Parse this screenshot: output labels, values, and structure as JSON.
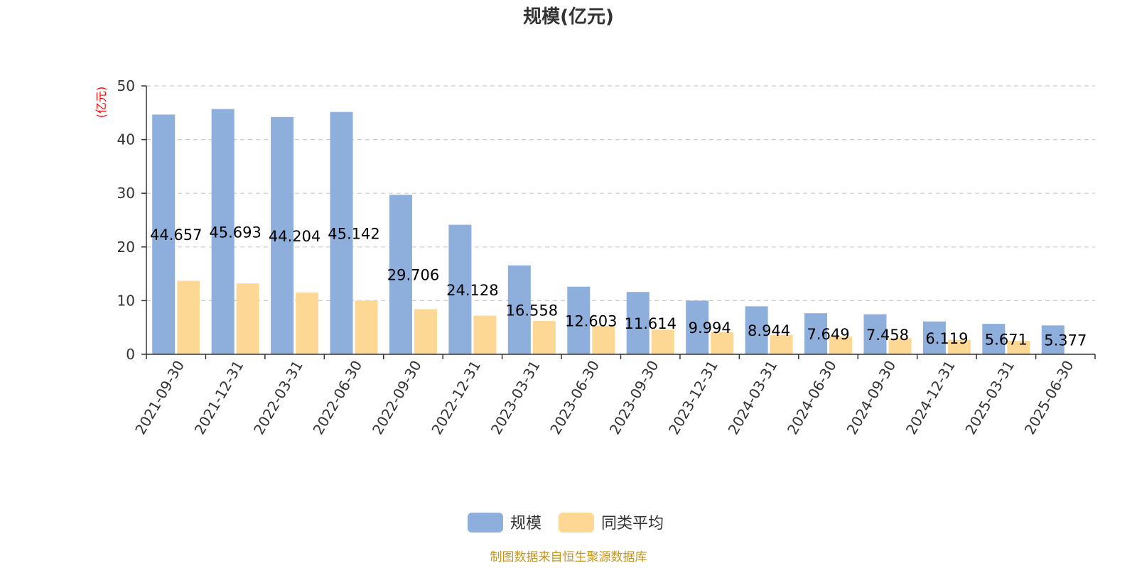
{
  "chart_data": {
    "type": "bar",
    "title": "规模(亿元)",
    "y_unit_label": "(亿元)",
    "ylim": [
      0,
      50
    ],
    "yticks": [
      0,
      10,
      20,
      30,
      40,
      50
    ],
    "grid": true,
    "legend_position": "bottom",
    "categories": [
      "2021-09-30",
      "2021-12-31",
      "2022-03-31",
      "2022-06-30",
      "2022-09-30",
      "2022-12-31",
      "2023-03-31",
      "2023-06-30",
      "2023-09-30",
      "2023-12-31",
      "2024-03-31",
      "2024-06-30",
      "2024-09-30",
      "2024-12-31",
      "2025-03-31",
      "2025-06-30"
    ],
    "series": [
      {
        "name": "规模",
        "color": "#8eaedb",
        "values": [
          44.657,
          45.693,
          44.204,
          45.142,
          29.706,
          24.128,
          16.558,
          12.603,
          11.614,
          9.994,
          8.944,
          7.649,
          7.458,
          6.119,
          5.671,
          5.377
        ],
        "labels": [
          "44.657",
          "45.693",
          "44.204",
          "45.142",
          "29.706",
          "24.128",
          "16.558",
          "12.603",
          "11.614",
          "9.994",
          "8.944",
          "7.649",
          "7.458",
          "6.119",
          "5.671",
          "5.377"
        ]
      },
      {
        "name": "同类平均",
        "color": "#fdd894",
        "values": [
          13.7,
          13.2,
          11.5,
          10.0,
          8.4,
          7.2,
          6.2,
          5.3,
          4.6,
          4.1,
          3.6,
          3.3,
          3.0,
          2.7,
          2.5,
          null
        ]
      }
    ],
    "source": "制图数据来自恒生聚源数据库"
  }
}
